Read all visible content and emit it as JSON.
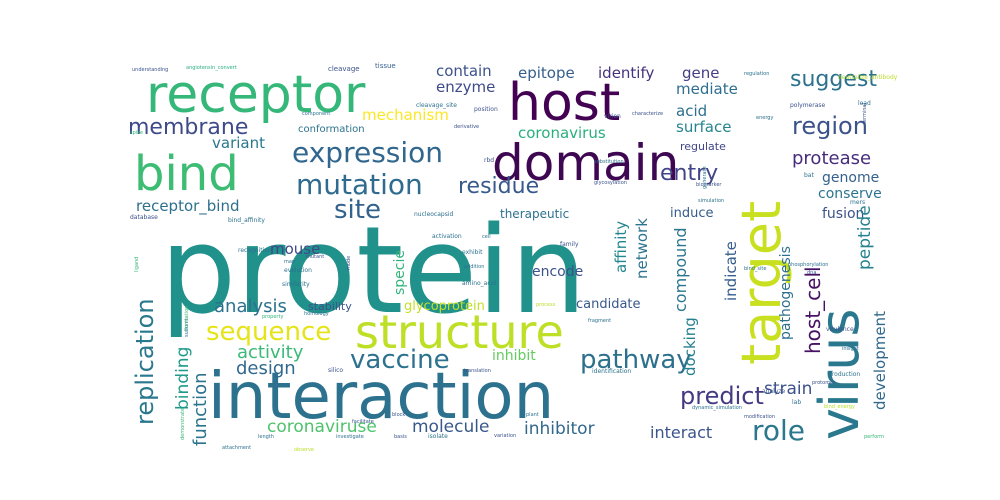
{
  "words": [
    {
      "text": "protein",
      "color": "#21918c"
    },
    {
      "text": "interaction",
      "color": "#2c728e"
    },
    {
      "text": "structure",
      "color": "#bddf26"
    },
    {
      "text": "host",
      "color": "#440154"
    },
    {
      "text": "domain",
      "color": "#3e0751"
    },
    {
      "text": "receptor",
      "color": "#35b779"
    },
    {
      "text": "bind",
      "color": "#3dbc74"
    },
    {
      "text": "target",
      "color": "#c8e020"
    },
    {
      "text": "virus",
      "color": "#2a788e"
    },
    {
      "text": "expression",
      "color": "#31668e"
    },
    {
      "text": "mutation",
      "color": "#2f6b8e"
    },
    {
      "text": "site",
      "color": "#33628d"
    },
    {
      "text": "membrane",
      "color": "#3e4a89"
    },
    {
      "text": "sequence",
      "color": "#e5e419"
    },
    {
      "text": "vaccine",
      "color": "#2c718e"
    },
    {
      "text": "pathway",
      "color": "#2d708e"
    },
    {
      "text": "role",
      "color": "#2a778e"
    },
    {
      "text": "region",
      "color": "#3b528b"
    },
    {
      "text": "suggest",
      "color": "#2c728e"
    },
    {
      "text": "residue",
      "color": "#37598c"
    },
    {
      "text": "entry",
      "color": "#414487"
    },
    {
      "text": "protease",
      "color": "#472d7b"
    },
    {
      "text": "predict",
      "color": "#443a83"
    },
    {
      "text": "replication",
      "color": "#2a788e"
    },
    {
      "text": "analysis",
      "color": "#2c728e"
    },
    {
      "text": "activity",
      "color": "#3aba76"
    },
    {
      "text": "design",
      "color": "#31688e"
    },
    {
      "text": "function",
      "color": "#2c738e"
    },
    {
      "text": "binding",
      "color": "#1f9a8a"
    },
    {
      "text": "coronaviruse",
      "color": "#4ec36b"
    },
    {
      "text": "molecule",
      "color": "#38588c"
    },
    {
      "text": "inhibitor",
      "color": "#31688e"
    },
    {
      "text": "interact",
      "color": "#3a548c"
    },
    {
      "text": "host_cell",
      "color": "#471164"
    },
    {
      "text": "development",
      "color": "#31688e"
    },
    {
      "text": "docking",
      "color": "#27808e"
    },
    {
      "text": "compound",
      "color": "#2a768e"
    },
    {
      "text": "strain",
      "color": "#3b528b"
    },
    {
      "text": "indicate",
      "color": "#365c8d"
    },
    {
      "text": "affinity",
      "color": "#24868e"
    },
    {
      "text": "network",
      "color": "#2c738e"
    },
    {
      "text": "enzyme",
      "color": "#3e4a89"
    },
    {
      "text": "mechanism",
      "color": "#fde725"
    },
    {
      "text": "contain",
      "color": "#3b528b"
    },
    {
      "text": "epitope",
      "color": "#355f8d"
    },
    {
      "text": "identify",
      "color": "#46327e"
    },
    {
      "text": "gene",
      "color": "#433e85"
    },
    {
      "text": "mediate",
      "color": "#2e6e8e"
    },
    {
      "text": "acid",
      "color": "#2d708e"
    },
    {
      "text": "surface",
      "color": "#25848e"
    },
    {
      "text": "coronavirus",
      "color": "#29af7f"
    },
    {
      "text": "regulate",
      "color": "#414487"
    },
    {
      "text": "receptor_bind",
      "color": "#2d708e"
    },
    {
      "text": "variant",
      "color": "#2a788e"
    },
    {
      "text": "conformation",
      "color": "#2c728e"
    },
    {
      "text": "genome",
      "color": "#34618d"
    },
    {
      "text": "conserve",
      "color": "#2b758e"
    },
    {
      "text": "fusion",
      "color": "#3b528b"
    },
    {
      "text": "induce",
      "color": "#365c8d"
    },
    {
      "text": "peptide",
      "color": "#26828e"
    },
    {
      "text": "pathogenesis",
      "color": "#2d708e"
    },
    {
      "text": "therapeutic",
      "color": "#2c728e"
    },
    {
      "text": "mouse",
      "color": "#3e4989"
    },
    {
      "text": "specie",
      "color": "#31b57b"
    },
    {
      "text": "encode",
      "color": "#3b528b"
    },
    {
      "text": "candidate",
      "color": "#38598c"
    },
    {
      "text": "stability",
      "color": "#3b528b"
    },
    {
      "text": "glycoprotein",
      "color": "#c2df23"
    },
    {
      "text": "inhibit",
      "color": "#63cb5f"
    },
    {
      "text": "cleavage",
      "color": "#3b528b"
    },
    {
      "text": "tissue",
      "color": "#35608d"
    },
    {
      "text": "understanding",
      "color": "#3b528b"
    },
    {
      "text": "angiotensin_convert",
      "color": "#29af7f"
    },
    {
      "text": "component",
      "color": "#2c728e"
    },
    {
      "text": "cleavage_site",
      "color": "#2c728e"
    },
    {
      "text": "position",
      "color": "#3b528b"
    },
    {
      "text": "neutralize_antibody",
      "color": "#b8de29"
    },
    {
      "text": "regulation",
      "color": "#2c728e"
    },
    {
      "text": "polymerase",
      "color": "#3b528b"
    },
    {
      "text": "energy",
      "color": "#2c728e"
    },
    {
      "text": "spike",
      "color": "#35b779"
    },
    {
      "text": "database",
      "color": "#3b528b"
    },
    {
      "text": "bind_affinity",
      "color": "#2c728e"
    },
    {
      "text": "subunit",
      "color": "#2c728e"
    },
    {
      "text": "ligand",
      "color": "#35b779"
    },
    {
      "text": "mutant",
      "color": "#3b528b"
    },
    {
      "text": "evolution",
      "color": "#2c728e"
    },
    {
      "text": "similarity",
      "color": "#2c728e"
    },
    {
      "text": "homology",
      "color": "#2c728e"
    },
    {
      "text": "silico",
      "color": "#3b528b"
    },
    {
      "text": "translation",
      "color": "#3b528b"
    },
    {
      "text": "amino_acid",
      "color": "#2c728e"
    },
    {
      "text": "addition",
      "color": "#2c728e"
    },
    {
      "text": "exhibit",
      "color": "#2c728e"
    },
    {
      "text": "family",
      "color": "#3b528b"
    },
    {
      "text": "process",
      "color": "#b8de29"
    },
    {
      "text": "mode",
      "color": "#3b528b"
    },
    {
      "text": "bind_site",
      "color": "#2c728e"
    },
    {
      "text": "phosphorylation",
      "color": "#2c728e"
    },
    {
      "text": "virulence",
      "color": "#3b528b"
    },
    {
      "text": "insight",
      "color": "#2c728e"
    },
    {
      "text": "production",
      "color": "#2c728e"
    },
    {
      "text": "analyze",
      "color": "#3b528b"
    },
    {
      "text": "protomer",
      "color": "#3b528b"
    },
    {
      "text": "identification",
      "color": "#2c728e"
    },
    {
      "text": "dynamic_simulation",
      "color": "#2c728e"
    },
    {
      "text": "modification",
      "color": "#3b528b"
    },
    {
      "text": "lab",
      "color": "#2c728e"
    },
    {
      "text": "perform",
      "color": "#35b779"
    },
    {
      "text": "plant",
      "color": "#2c728e"
    },
    {
      "text": "basis",
      "color": "#3b528b"
    },
    {
      "text": "isolate",
      "color": "#2c728e"
    },
    {
      "text": "variation",
      "color": "#3b528b"
    },
    {
      "text": "investigate",
      "color": "#2c728e"
    },
    {
      "text": "length",
      "color": "#2c728e"
    },
    {
      "text": "observe",
      "color": "#b8de29"
    },
    {
      "text": "facilitate",
      "color": "#3b528b"
    },
    {
      "text": "attachment",
      "color": "#2c728e"
    },
    {
      "text": "demonstrate",
      "color": "#35b779"
    },
    {
      "text": "nucleocapsid",
      "color": "#2c728e"
    },
    {
      "text": "glycosylation",
      "color": "#3b528b"
    },
    {
      "text": "simulation",
      "color": "#2c728e"
    },
    {
      "text": "biomarker",
      "color": "#3b528b"
    },
    {
      "text": "generate",
      "color": "#2c728e"
    },
    {
      "text": "substitution",
      "color": "#2c728e"
    },
    {
      "text": "characterize",
      "color": "#3b528b"
    },
    {
      "text": "derivative",
      "color": "#3b528b"
    },
    {
      "text": "recognition",
      "color": "#2c728e"
    },
    {
      "text": "activation",
      "color": "#2c728e"
    },
    {
      "text": "formation",
      "color": "#35b779"
    },
    {
      "text": "rbd",
      "color": "#3b528b"
    },
    {
      "text": "cell",
      "color": "#2c728e"
    },
    {
      "text": "dna",
      "color": "#3b528b"
    },
    {
      "text": "lead",
      "color": "#2c728e"
    },
    {
      "text": "terminal",
      "color": "#3b528b"
    },
    {
      "text": "bat",
      "color": "#2c728e"
    },
    {
      "text": "mers",
      "color": "#2c728e"
    },
    {
      "text": "map",
      "color": "#2c728e"
    },
    {
      "text": "bind_energy",
      "color": "#b8de29"
    },
    {
      "text": "virion",
      "color": "#3b528b"
    },
    {
      "text": "property",
      "color": "#35b779"
    },
    {
      "text": "block",
      "color": "#3b528b"
    },
    {
      "text": "fragment",
      "color": "#2c728e"
    }
  ]
}
